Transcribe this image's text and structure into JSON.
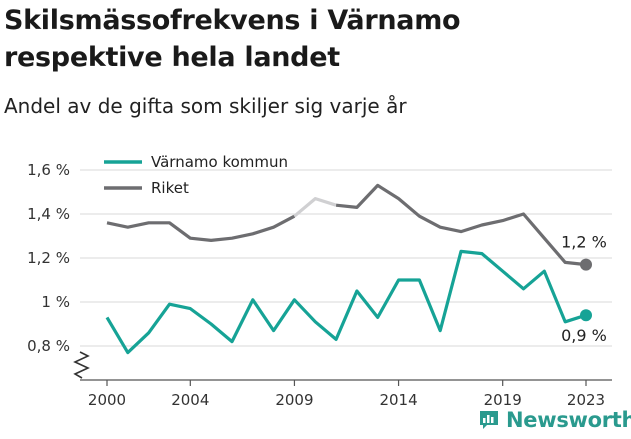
{
  "title": "Skilsmässofrekvens i Värnamo respektive hela landet",
  "subtitle": "Andel av de gifta som skiljer sig varje år",
  "brand": {
    "name": "Newsworthy",
    "icon": "newsworthy-logo-icon"
  },
  "colors": {
    "varnamo": "#16a396",
    "riket": "#6d6d70",
    "riket_highlight": "#d0d0d2",
    "grid": "#d9d9d9",
    "axis": "#555555"
  },
  "chart_data": {
    "type": "line",
    "x": [
      2000,
      2001,
      2002,
      2003,
      2004,
      2005,
      2006,
      2007,
      2008,
      2009,
      2010,
      2011,
      2012,
      2013,
      2014,
      2015,
      2016,
      2017,
      2018,
      2019,
      2020,
      2021,
      2022,
      2023
    ],
    "series": [
      {
        "name": "Värnamo kommun",
        "values": [
          0.93,
          0.77,
          0.86,
          0.99,
          0.97,
          0.9,
          0.82,
          1.01,
          0.87,
          1.01,
          0.91,
          0.83,
          1.05,
          0.93,
          1.1,
          1.1,
          0.87,
          1.23,
          1.22,
          1.14,
          1.06,
          1.14,
          0.91,
          0.94
        ],
        "end_label": "0,9 %"
      },
      {
        "name": "Riket",
        "values": [
          1.36,
          1.34,
          1.36,
          1.36,
          1.29,
          1.28,
          1.29,
          1.31,
          1.34,
          1.39,
          1.47,
          1.44,
          1.43,
          1.53,
          1.47,
          1.39,
          1.34,
          1.32,
          1.35,
          1.37,
          1.4,
          1.29,
          1.18,
          1.17
        ],
        "end_label": "1,2 %"
      }
    ],
    "y_ticks": [
      {
        "value": 0.8,
        "label": "0,8 %"
      },
      {
        "value": 1.0,
        "label": "1 %"
      },
      {
        "value": 1.2,
        "label": "1,2 %"
      },
      {
        "value": 1.4,
        "label": "1,4 %"
      },
      {
        "value": 1.6,
        "label": "1,6 %"
      }
    ],
    "x_ticks": [
      {
        "value": 2000,
        "label": "2000"
      },
      {
        "value": 2004,
        "label": "2004"
      },
      {
        "value": 2009,
        "label": "2009"
      },
      {
        "value": 2014,
        "label": "2014"
      },
      {
        "value": 2019,
        "label": "2019"
      },
      {
        "value": 2023,
        "label": "2023"
      }
    ],
    "xlim": [
      1999.4,
      2023.5
    ],
    "ylim": [
      0.7,
      1.65
    ],
    "grid": true,
    "broken_axis": true,
    "legend": {
      "placement": "top-left",
      "entries": [
        "Värnamo kommun",
        "Riket"
      ]
    }
  }
}
